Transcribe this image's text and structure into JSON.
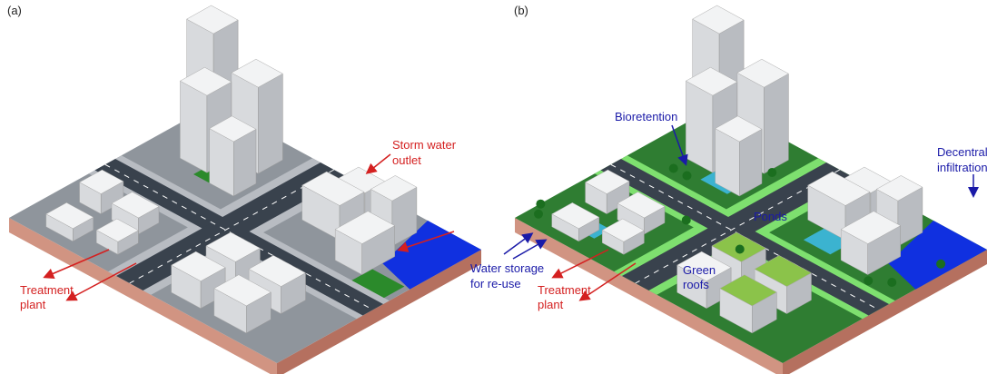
{
  "panels": [
    {
      "label": "(a)",
      "annotations": [
        {
          "lines": [
            "Storm water",
            "outlet"
          ]
        },
        {
          "lines": [
            "Treatment",
            "plant"
          ]
        }
      ]
    },
    {
      "label": "(b)",
      "annotations": [
        {
          "lines": [
            "Bioretention"
          ]
        },
        {
          "lines": [
            "Decentral",
            "infiltration"
          ]
        },
        {
          "lines": [
            "Ponds"
          ]
        },
        {
          "lines": [
            "Water storage",
            "for re-use"
          ]
        },
        {
          "lines": [
            "Green",
            "roofs"
          ]
        },
        {
          "lines": [
            "Treatment",
            "plant"
          ]
        }
      ]
    }
  ]
}
